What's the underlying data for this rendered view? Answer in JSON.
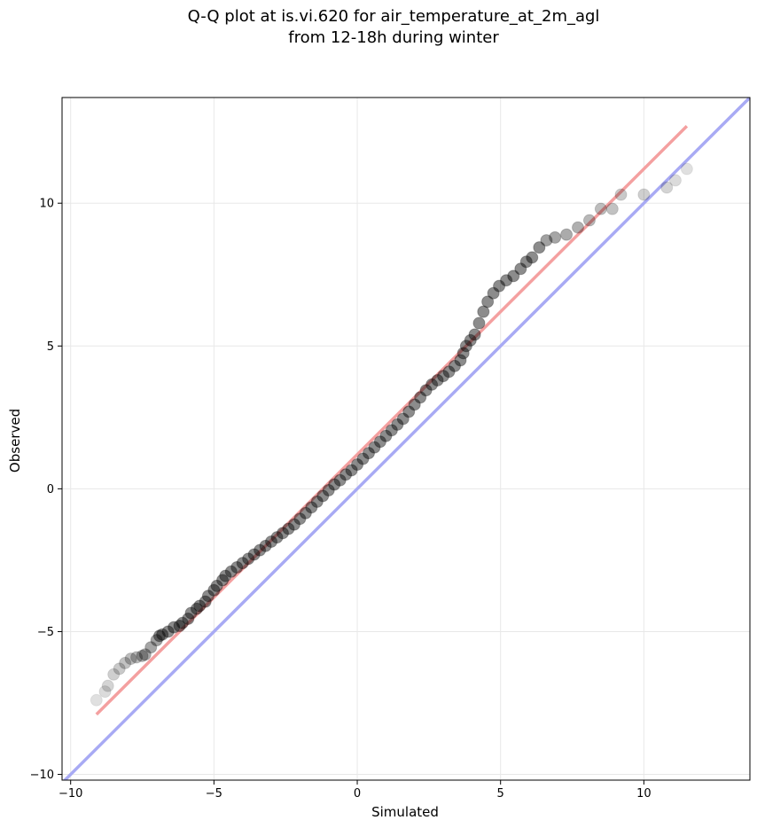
{
  "chart_data": {
    "type": "scatter",
    "title_line1": "Q-Q plot at is.vi.620 for air_temperature_at_2m_agl",
    "title_line2": "from 12-18h during winter",
    "xlabel": "Simulated",
    "ylabel": "Observed",
    "xlim": [
      -10.3,
      13.7
    ],
    "ylim": [
      -10.2,
      13.7
    ],
    "xticks": [
      -10,
      -5,
      0,
      5,
      10
    ],
    "yticks": [
      -10,
      -5,
      0,
      5,
      10
    ],
    "xtick_labels": [
      "−10",
      "−5",
      "0",
      "5",
      "10"
    ],
    "ytick_labels": [
      "−10",
      "−5",
      "0",
      "5",
      "10"
    ],
    "grid": true,
    "colors": {
      "points": "#000000",
      "fit_line": "#f4a0a0",
      "identity_line": "#a8aaf4",
      "grid": "#e8e8e8"
    },
    "identity_line": {
      "from": [
        -10.3,
        -10.3
      ],
      "to": [
        13.7,
        13.7
      ]
    },
    "fit_line": {
      "from": [
        -9.1,
        -7.9
      ],
      "to": [
        11.5,
        12.7
      ]
    },
    "quantiles": [
      [
        -9.1,
        -7.4
      ],
      [
        -8.8,
        -7.1
      ],
      [
        -8.7,
        -6.9
      ],
      [
        -8.5,
        -6.5
      ],
      [
        -8.3,
        -6.3
      ],
      [
        -8.1,
        -6.1
      ],
      [
        -7.9,
        -5.95
      ],
      [
        -7.7,
        -5.9
      ],
      [
        -7.5,
        -5.85
      ],
      [
        -7.4,
        -5.8
      ],
      [
        -7.2,
        -5.55
      ],
      [
        -7.0,
        -5.3
      ],
      [
        -6.9,
        -5.15
      ],
      [
        -6.8,
        -5.1
      ],
      [
        -6.6,
        -5.0
      ],
      [
        -6.4,
        -4.85
      ],
      [
        -6.2,
        -4.8
      ],
      [
        -6.1,
        -4.7
      ],
      [
        -5.9,
        -4.55
      ],
      [
        -5.8,
        -4.35
      ],
      [
        -5.6,
        -4.2
      ],
      [
        -5.5,
        -4.1
      ],
      [
        -5.3,
        -3.95
      ],
      [
        -5.2,
        -3.75
      ],
      [
        -5.0,
        -3.55
      ],
      [
        -4.9,
        -3.4
      ],
      [
        -4.7,
        -3.2
      ],
      [
        -4.6,
        -3.05
      ],
      [
        -4.4,
        -2.9
      ],
      [
        -4.2,
        -2.75
      ],
      [
        -4.0,
        -2.6
      ],
      [
        -3.8,
        -2.45
      ],
      [
        -3.6,
        -2.3
      ],
      [
        -3.4,
        -2.15
      ],
      [
        -3.2,
        -2.0
      ],
      [
        -3.0,
        -1.85
      ],
      [
        -2.8,
        -1.7
      ],
      [
        -2.6,
        -1.55
      ],
      [
        -2.4,
        -1.4
      ],
      [
        -2.2,
        -1.25
      ],
      [
        -2.0,
        -1.05
      ],
      [
        -1.8,
        -0.85
      ],
      [
        -1.6,
        -0.65
      ],
      [
        -1.4,
        -0.45
      ],
      [
        -1.2,
        -0.25
      ],
      [
        -1.0,
        -0.05
      ],
      [
        -0.8,
        0.15
      ],
      [
        -0.6,
        0.3
      ],
      [
        -0.4,
        0.5
      ],
      [
        -0.2,
        0.65
      ],
      [
        0.0,
        0.85
      ],
      [
        0.2,
        1.05
      ],
      [
        0.4,
        1.25
      ],
      [
        0.6,
        1.45
      ],
      [
        0.8,
        1.65
      ],
      [
        1.0,
        1.85
      ],
      [
        1.2,
        2.05
      ],
      [
        1.4,
        2.25
      ],
      [
        1.6,
        2.45
      ],
      [
        1.8,
        2.7
      ],
      [
        2.0,
        2.95
      ],
      [
        2.2,
        3.2
      ],
      [
        2.4,
        3.45
      ],
      [
        2.6,
        3.65
      ],
      [
        2.8,
        3.8
      ],
      [
        3.0,
        3.95
      ],
      [
        3.2,
        4.1
      ],
      [
        3.4,
        4.3
      ],
      [
        3.6,
        4.5
      ],
      [
        3.7,
        4.75
      ],
      [
        3.8,
        5.0
      ],
      [
        3.95,
        5.2
      ],
      [
        4.1,
        5.4
      ],
      [
        4.25,
        5.8
      ],
      [
        4.4,
        6.2
      ],
      [
        4.55,
        6.55
      ],
      [
        4.75,
        6.85
      ],
      [
        4.95,
        7.1
      ],
      [
        5.2,
        7.3
      ],
      [
        5.45,
        7.45
      ],
      [
        5.7,
        7.7
      ],
      [
        5.9,
        7.95
      ],
      [
        6.1,
        8.1
      ],
      [
        6.35,
        8.45
      ],
      [
        6.6,
        8.7
      ],
      [
        6.9,
        8.8
      ],
      [
        7.3,
        8.9
      ],
      [
        7.7,
        9.15
      ],
      [
        8.1,
        9.4
      ],
      [
        8.5,
        9.8
      ],
      [
        8.9,
        9.8
      ],
      [
        9.2,
        10.3
      ],
      [
        10.0,
        10.3
      ],
      [
        10.8,
        10.55
      ],
      [
        11.1,
        10.8
      ],
      [
        11.5,
        11.2
      ]
    ]
  }
}
